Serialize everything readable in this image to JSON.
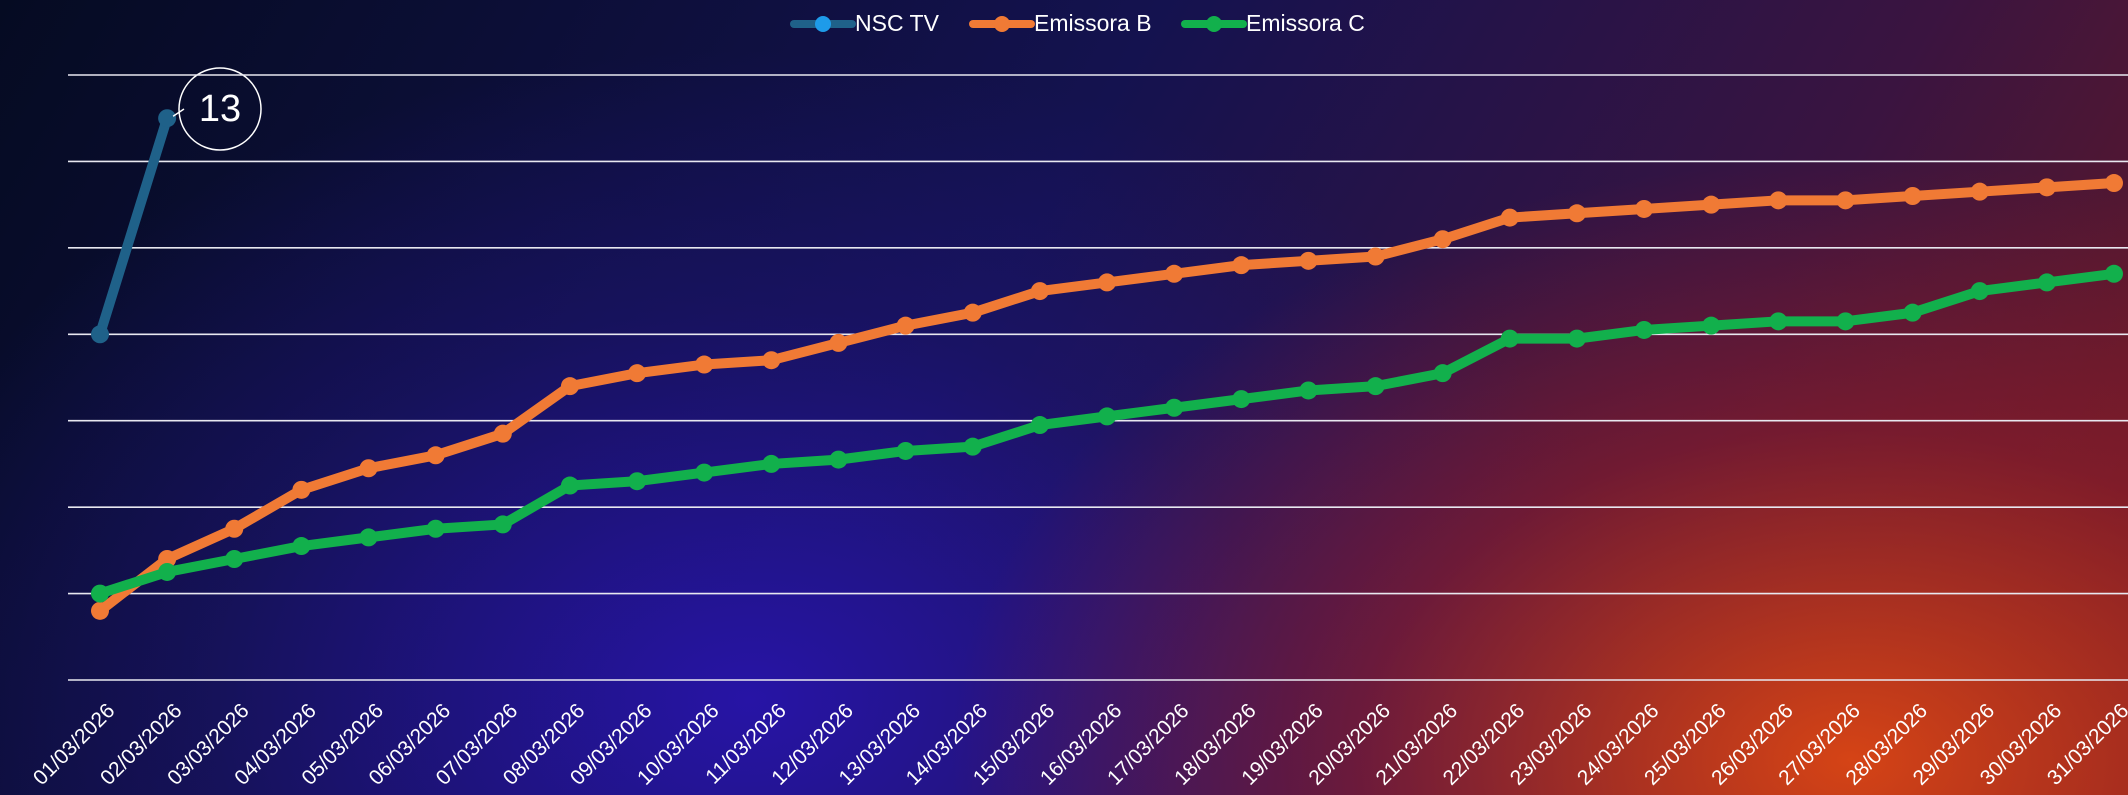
{
  "chart_data": {
    "type": "line",
    "categories": [
      "01/03/2026",
      "02/03/2026",
      "03/03/2026",
      "04/03/2026",
      "05/03/2026",
      "06/03/2026",
      "07/03/2026",
      "08/03/2026",
      "09/03/2026",
      "10/03/2026",
      "11/03/2026",
      "12/03/2026",
      "13/03/2026",
      "14/03/2026",
      "15/03/2026",
      "16/03/2026",
      "17/03/2026",
      "18/03/2026",
      "19/03/2026",
      "20/03/2026",
      "21/03/2026",
      "22/03/2026",
      "23/03/2026",
      "24/03/2026",
      "25/03/2026",
      "26/03/2026",
      "27/03/2026",
      "28/03/2026",
      "29/03/2026",
      "30/03/2026",
      "31/03/2026"
    ],
    "series": [
      {
        "name": "NSC TV",
        "color": "#1f6189",
        "values": [
          8,
          13,
          null,
          null,
          null,
          null,
          null,
          null,
          null,
          null,
          null,
          null,
          null,
          null,
          null,
          null,
          null,
          null,
          null,
          null,
          null,
          null,
          null,
          null,
          null,
          null,
          null,
          null,
          null,
          null,
          null
        ]
      },
      {
        "name": "Emissora B",
        "color": "#f07a35",
        "values": [
          1.6,
          2.8,
          3.5,
          4.4,
          4.9,
          5.2,
          5.7,
          6.8,
          7.1,
          7.3,
          7.4,
          7.8,
          8.2,
          8.5,
          9.0,
          9.2,
          9.4,
          9.6,
          9.7,
          9.8,
          10.2,
          10.7,
          10.8,
          10.9,
          11.0,
          11.1,
          11.1,
          11.2,
          11.3,
          11.4,
          11.5
        ]
      },
      {
        "name": "Emissora C",
        "color": "#12b04c",
        "values": [
          2.0,
          2.5,
          2.8,
          3.1,
          3.3,
          3.5,
          3.6,
          4.5,
          4.6,
          4.8,
          5.0,
          5.1,
          5.3,
          5.4,
          5.9,
          6.1,
          6.3,
          6.5,
          6.7,
          6.8,
          7.1,
          7.9,
          7.9,
          8.1,
          8.2,
          8.3,
          8.3,
          8.5,
          9.0,
          9.2,
          9.4
        ]
      }
    ],
    "ylim": [
      0,
      14
    ],
    "yticks": [
      0,
      2,
      4,
      6,
      8,
      10,
      12,
      14
    ],
    "grid": true
  }
}
